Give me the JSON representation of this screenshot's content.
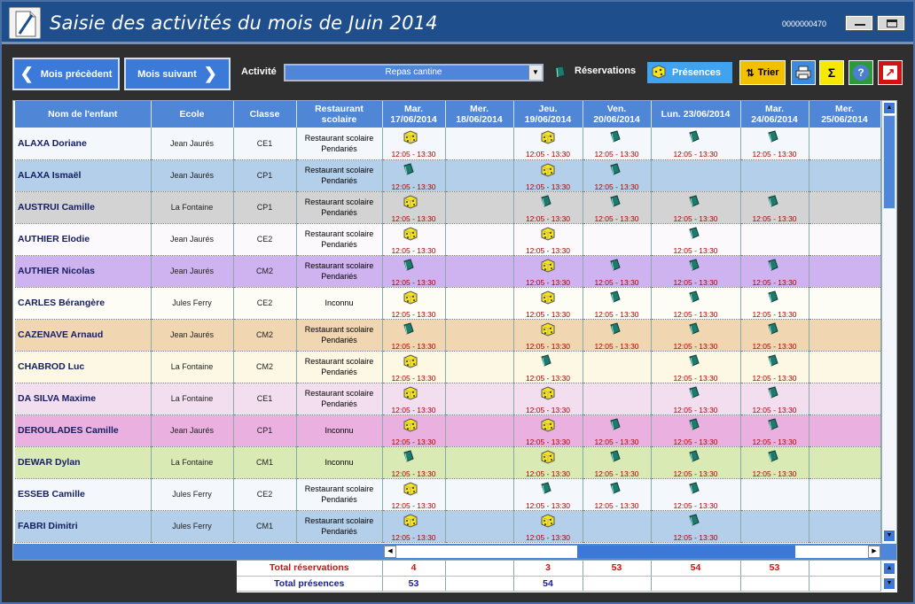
{
  "window": {
    "title": "Saisie des activités du mois de Juin 2014",
    "code": "0000000470"
  },
  "toolbar": {
    "prev_label": "Mois précèdent",
    "next_label": "Mois suivant",
    "activity_label": "Activité",
    "activity_value": "Repas cantine",
    "reservations_label": "Réservations",
    "presences_label": "Présences",
    "sort_label": "Trier",
    "sum_symbol": "Σ",
    "help_symbol": "?"
  },
  "columns": {
    "name": "Nom de l'enfant",
    "school": "Ecole",
    "class": "Classe",
    "restaurant": "Restaurant scolaire",
    "days": [
      {
        "l1": "Mar.",
        "l2": "17/06/2014"
      },
      {
        "l1": "Mer.",
        "l2": "18/06/2014"
      },
      {
        "l1": "Jeu.",
        "l2": "19/06/2014"
      },
      {
        "l1": "Ven.",
        "l2": "20/06/2014"
      },
      {
        "l1": "Lun. 23/06/2014",
        "l2": ""
      },
      {
        "l1": "Mar.",
        "l2": "24/06/2014"
      },
      {
        "l1": "Mer.",
        "l2": "25/06/2014"
      }
    ]
  },
  "time_slot": "12:05 - 13:30",
  "colors": {
    "header": "#4f86d6",
    "reservation_icon": "#1f7a6e",
    "presence_icon": "#f5e31c",
    "total_reservations": "#d01010",
    "total_presences": "#1a1aa0"
  },
  "rows": [
    {
      "name": "ALAXA Doriane",
      "school": "Jean Jaurés",
      "class": "CE1",
      "restaurant": "Restaurant scolaire Pendariés",
      "bg": "#f4f8fd",
      "cells": [
        "P",
        "",
        "P",
        "R",
        "R",
        "R",
        ""
      ]
    },
    {
      "name": "ALAXA Ismaël",
      "school": "Jean Jaurés",
      "class": "CP1",
      "restaurant": "Restaurant scolaire Pendariés",
      "bg": "#b4cfea",
      "cells": [
        "R",
        "",
        "P",
        "R",
        "",
        "",
        ""
      ]
    },
    {
      "name": "AUSTRUI Camille",
      "school": "La Fontaine",
      "class": "CP1",
      "restaurant": "Restaurant scolaire Pendariés",
      "bg": "#d3d3d3",
      "cells": [
        "P",
        "",
        "R",
        "R",
        "R",
        "R",
        ""
      ]
    },
    {
      "name": "AUTHIER Elodie",
      "school": "Jean Jaurés",
      "class": "CE2",
      "restaurant": "Restaurant scolaire Pendariés",
      "bg": "#fbf9fc",
      "cells": [
        "P",
        "",
        "P",
        "",
        "R",
        "",
        ""
      ]
    },
    {
      "name": "AUTHIER Nicolas",
      "school": "Jean Jaurés",
      "class": "CM2",
      "restaurant": "Restaurant scolaire Pendariés",
      "bg": "#cfb2f0",
      "cells": [
        "R",
        "",
        "P",
        "R",
        "R",
        "R",
        ""
      ]
    },
    {
      "name": "CARLES Bérangère",
      "school": "Jules Ferry",
      "class": "CE2",
      "restaurant": "Inconnu",
      "bg": "#fdfdf6",
      "cells": [
        "P",
        "",
        "P",
        "R",
        "R",
        "R",
        ""
      ]
    },
    {
      "name": "CAZENAVE Arnaud",
      "school": "Jean Jaurés",
      "class": "CM2",
      "restaurant": "Restaurant scolaire Pendariés",
      "bg": "#f1d6b2",
      "cells": [
        "R",
        "",
        "P",
        "R",
        "R",
        "R",
        ""
      ]
    },
    {
      "name": "CHABROD Luc",
      "school": "La Fontaine",
      "class": "CM2",
      "restaurant": "Restaurant scolaire Pendariés",
      "bg": "#fdf8e3",
      "cells": [
        "P",
        "",
        "R",
        "",
        "R",
        "R",
        ""
      ]
    },
    {
      "name": "DA SILVA Maxime",
      "school": "La Fontaine",
      "class": "CE1",
      "restaurant": "Restaurant scolaire Pendariés",
      "bg": "#f3def0",
      "cells": [
        "P",
        "",
        "P",
        "",
        "R",
        "R",
        ""
      ]
    },
    {
      "name": "DEROULADES Camille",
      "school": "Jean Jaurés",
      "class": "CP1",
      "restaurant": "Inconnu",
      "bg": "#eab1e0",
      "cells": [
        "P",
        "",
        "P",
        "R",
        "R",
        "R",
        ""
      ]
    },
    {
      "name": "DEWAR Dylan",
      "school": "La Fontaine",
      "class": "CM1",
      "restaurant": "Inconnu",
      "bg": "#d9eab4",
      "cells": [
        "R",
        "",
        "P",
        "R",
        "R",
        "R",
        ""
      ]
    },
    {
      "name": "ESSEB Camille",
      "school": "Jules Ferry",
      "class": "CE2",
      "restaurant": "Restaurant scolaire Pendariés",
      "bg": "#f4f8fd",
      "cells": [
        "P",
        "",
        "R",
        "R",
        "R",
        "",
        ""
      ]
    },
    {
      "name": "FABRI Dimitri",
      "school": "Jules Ferry",
      "class": "CM1",
      "restaurant": "Restaurant scolaire Pendariés",
      "bg": "#b4cfea",
      "cells": [
        "P",
        "",
        "P",
        "",
        "R",
        "",
        ""
      ]
    }
  ],
  "totals": {
    "reservations_label": "Total réservations",
    "presences_label": "Total présences",
    "reservations": [
      "4",
      "",
      "3",
      "53",
      "54",
      "53",
      ""
    ],
    "presences": [
      "53",
      "",
      "54",
      "",
      "",
      "",
      ""
    ]
  }
}
